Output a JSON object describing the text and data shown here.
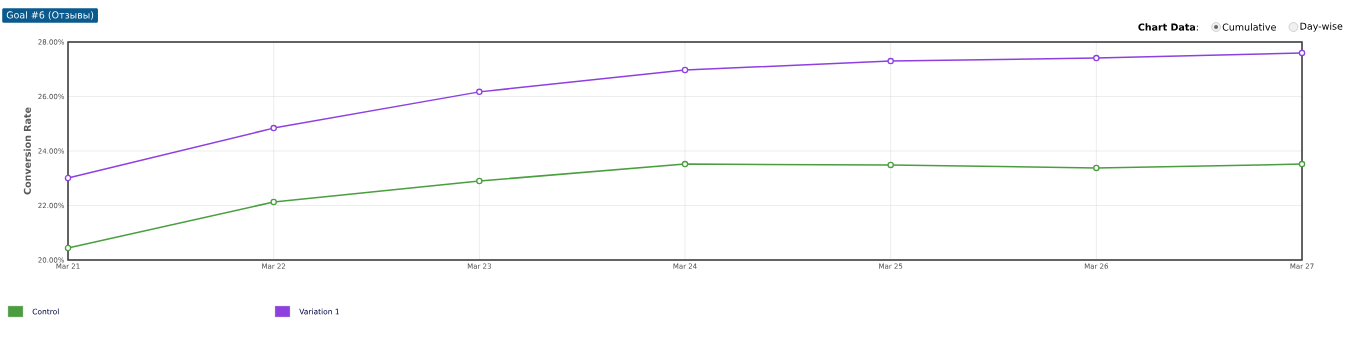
{
  "chart_data": {
    "type": "line",
    "title": "Goal #6 (Отзывы)",
    "ylabel": "Conversion Rate",
    "categories": [
      "Mar 21",
      "Mar 22",
      "Mar 23",
      "Mar 24",
      "Mar 25",
      "Mar 26",
      "Mar 27"
    ],
    "series": [
      {
        "name": "Control",
        "color": "#4a9e3f",
        "values": [
          20.44,
          22.13,
          22.9,
          23.52,
          23.49,
          23.38,
          23.52
        ]
      },
      {
        "name": "Variation 1",
        "color": "#8e3fe0",
        "values": [
          23.01,
          24.84,
          26.17,
          26.97,
          27.3,
          27.41,
          27.6
        ]
      }
    ],
    "ylim": [
      20,
      28
    ],
    "yticks": [
      {
        "value": 20,
        "label": "20.00%"
      },
      {
        "value": 22,
        "label": "22.00%"
      },
      {
        "value": 24,
        "label": "24.00%"
      },
      {
        "value": 26,
        "label": "26.00%"
      },
      {
        "value": 28,
        "label": "28.00%"
      }
    ],
    "grid": true,
    "legend": "bottom",
    "marker": "circle",
    "line_style": "solid",
    "annotations": [
      "**Chart Data**:",
      "Cumulative",
      "Day-wise"
    ]
  }
}
